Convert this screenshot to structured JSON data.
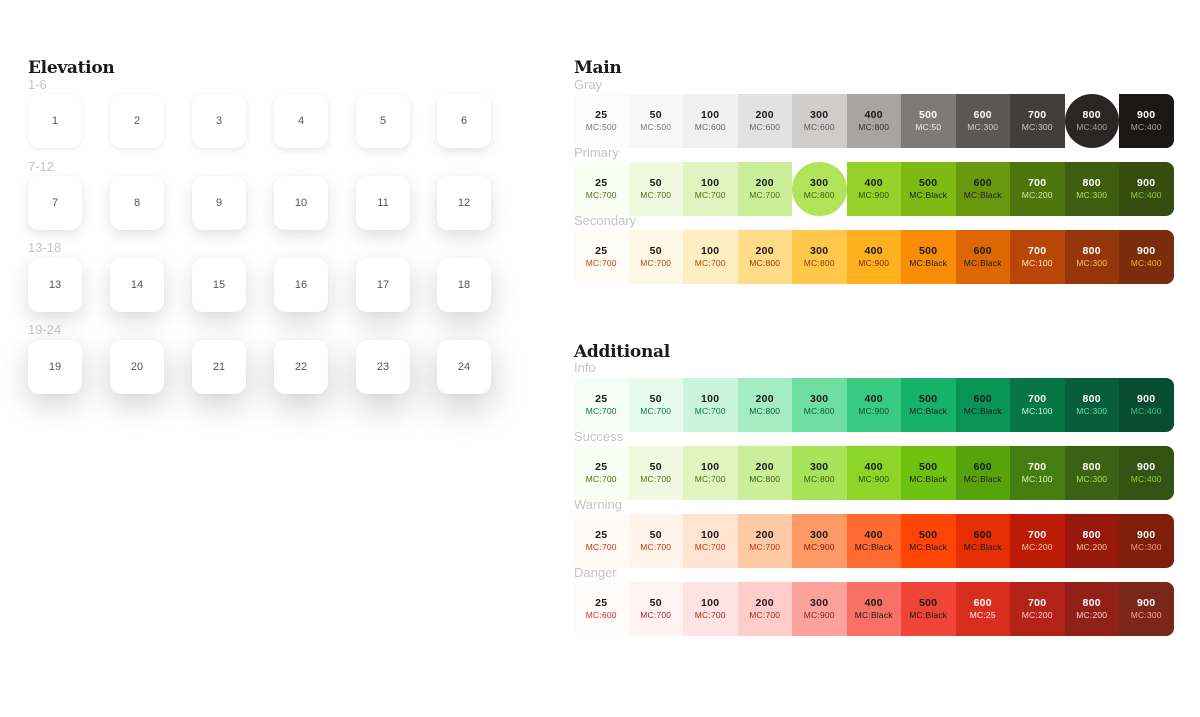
{
  "elevation": {
    "title": "Elevation",
    "groups": [
      {
        "label": "1-6",
        "cards": [
          "1",
          "2",
          "3",
          "4",
          "5",
          "6"
        ]
      },
      {
        "label": "7-12",
        "cards": [
          "7",
          "8",
          "9",
          "10",
          "11",
          "12"
        ]
      },
      {
        "label": "13-18",
        "cards": [
          "13",
          "14",
          "15",
          "16",
          "17",
          "18"
        ]
      },
      {
        "label": "19-24",
        "cards": [
          "19",
          "20",
          "21",
          "22",
          "23",
          "24"
        ]
      }
    ]
  },
  "main": {
    "title": "Main",
    "palettes": [
      {
        "name": "Gray",
        "swatches": [
          {
            "shade": "25",
            "mc": "MC:500",
            "bg": "#fcfcfc",
            "fg": "#1a1a1a",
            "mcColor": "#7a7a7a"
          },
          {
            "shade": "50",
            "mc": "MC:500",
            "bg": "#f7f7f7",
            "fg": "#1a1a1a",
            "mcColor": "#7a7a7a"
          },
          {
            "shade": "100",
            "mc": "MC:600",
            "bg": "#f0f0f0",
            "fg": "#1a1a1a",
            "mcColor": "#666666"
          },
          {
            "shade": "200",
            "mc": "MC:600",
            "bg": "#e3e2e2",
            "fg": "#1a1a1a",
            "mcColor": "#666666"
          },
          {
            "shade": "300",
            "mc": "MC:600",
            "bg": "#cfcdcc",
            "fg": "#1a1a1a",
            "mcColor": "#5a5a5a"
          },
          {
            "shade": "400",
            "mc": "MC:800",
            "bg": "#a8a4a2",
            "fg": "#1a1a1a",
            "mcColor": "#333333"
          },
          {
            "shade": "500",
            "mc": "MC:50",
            "bg": "#7f7a78",
            "fg": "#ffffff",
            "mcColor": "#f0f0f0"
          },
          {
            "shade": "600",
            "mc": "MC:300",
            "bg": "#5b5755",
            "fg": "#ffffff",
            "mcColor": "#d0cecd"
          },
          {
            "shade": "700",
            "mc": "MC:300",
            "bg": "#413e3c",
            "fg": "#ffffff",
            "mcColor": "#cfcdcc"
          },
          {
            "shade": "800",
            "mc": "MC:400",
            "bg": "#2a2625",
            "fg": "#ffffff",
            "mcColor": "#a8a4a2",
            "circle": true
          },
          {
            "shade": "900",
            "mc": "MC:400",
            "bg": "#1a1716",
            "fg": "#ffffff",
            "mcColor": "#a8a4a2"
          }
        ]
      },
      {
        "name": "Primary",
        "swatches": [
          {
            "shade": "25",
            "mc": "MC:700",
            "bg": "#f9fdf2",
            "fg": "#1a1a1a",
            "mcColor": "#4a6e14"
          },
          {
            "shade": "50",
            "mc": "MC:700",
            "bg": "#f1fae1",
            "fg": "#1a1a1a",
            "mcColor": "#4a6e14"
          },
          {
            "shade": "100",
            "mc": "MC:700",
            "bg": "#e1f4c0",
            "fg": "#1a1a1a",
            "mcColor": "#4a6e14"
          },
          {
            "shade": "200",
            "mc": "MC:700",
            "bg": "#cbee99",
            "fg": "#1a1a1a",
            "mcColor": "#4a6e14"
          },
          {
            "shade": "300",
            "mc": "MC:800",
            "bg": "#b1e35b",
            "fg": "#1a1a1a",
            "mcColor": "#3a5a10",
            "circle": true
          },
          {
            "shade": "400",
            "mc": "MC:900",
            "bg": "#96d12a",
            "fg": "#1a1a1a",
            "mcColor": "#2f4a0c"
          },
          {
            "shade": "500",
            "mc": "MC:Black",
            "bg": "#7fba14",
            "fg": "#1a1a1a",
            "mcColor": "#1a1a1a"
          },
          {
            "shade": "600",
            "mc": "MC:Black",
            "bg": "#67980e",
            "fg": "#1a1a1a",
            "mcColor": "#1a1a1a"
          },
          {
            "shade": "700",
            "mc": "MC:200",
            "bg": "#4f760d",
            "fg": "#ffffff",
            "mcColor": "#cbee99"
          },
          {
            "shade": "800",
            "mc": "MC:300",
            "bg": "#3f5d0f",
            "fg": "#ffffff",
            "mcColor": "#b1e35b"
          },
          {
            "shade": "900",
            "mc": "MC:400",
            "bg": "#354e10",
            "fg": "#ffffff",
            "mcColor": "#96d12a"
          }
        ]
      },
      {
        "name": "Secondary",
        "swatches": [
          {
            "shade": "25",
            "mc": "MC:700",
            "bg": "#fffcf5",
            "fg": "#1a1a1a",
            "mcColor": "#c2410c"
          },
          {
            "shade": "50",
            "mc": "MC:700",
            "bg": "#fff8e6",
            "fg": "#1a1a1a",
            "mcColor": "#c2410c"
          },
          {
            "shade": "100",
            "mc": "MC:700",
            "bg": "#ffeec2",
            "fg": "#1a1a1a",
            "mcColor": "#c2410c"
          },
          {
            "shade": "200",
            "mc": "MC:800",
            "bg": "#ffdd88",
            "fg": "#1a1a1a",
            "mcColor": "#9a3412"
          },
          {
            "shade": "300",
            "mc": "MC:800",
            "bg": "#ffc84a",
            "fg": "#1a1a1a",
            "mcColor": "#9a3412"
          },
          {
            "shade": "400",
            "mc": "MC:900",
            "bg": "#ffb01f",
            "fg": "#1a1a1a",
            "mcColor": "#7c2d12"
          },
          {
            "shade": "500",
            "mc": "MC:Black",
            "bg": "#f98d08",
            "fg": "#1a1a1a",
            "mcColor": "#1a1a1a"
          },
          {
            "shade": "600",
            "mc": "MC:Black",
            "bg": "#dd6703",
            "fg": "#1a1a1a",
            "mcColor": "#1a1a1a"
          },
          {
            "shade": "700",
            "mc": "MC:100",
            "bg": "#b74607",
            "fg": "#ffffff",
            "mcColor": "#ffeec2"
          },
          {
            "shade": "800",
            "mc": "MC:300",
            "bg": "#94350c",
            "fg": "#ffffff",
            "mcColor": "#ffc84a"
          },
          {
            "shade": "900",
            "mc": "MC:400",
            "bg": "#7a2d0d",
            "fg": "#ffffff",
            "mcColor": "#ffb01f"
          }
        ]
      }
    ]
  },
  "additional": {
    "title": "Additional",
    "palettes": [
      {
        "name": "Info",
        "swatches": [
          {
            "shade": "25",
            "mc": "MC:700",
            "bg": "#f5fdf8",
            "fg": "#1a1a1a",
            "mcColor": "#067647"
          },
          {
            "shade": "50",
            "mc": "MC:700",
            "bg": "#e6faee",
            "fg": "#1a1a1a",
            "mcColor": "#067647"
          },
          {
            "shade": "100",
            "mc": "MC:700",
            "bg": "#cbf4dc",
            "fg": "#1a1a1a",
            "mcColor": "#067647"
          },
          {
            "shade": "200",
            "mc": "MC:800",
            "bg": "#a4ecc2",
            "fg": "#1a1a1a",
            "mcColor": "#085d3a"
          },
          {
            "shade": "300",
            "mc": "MC:800",
            "bg": "#6fdea2",
            "fg": "#1a1a1a",
            "mcColor": "#085d3a"
          },
          {
            "shade": "400",
            "mc": "MC:900",
            "bg": "#3acb82",
            "fg": "#1a1a1a",
            "mcColor": "#074d31"
          },
          {
            "shade": "500",
            "mc": "MC:Black",
            "bg": "#17b26a",
            "fg": "#1a1a1a",
            "mcColor": "#1a1a1a"
          },
          {
            "shade": "600",
            "mc": "MC:Black",
            "bg": "#079455",
            "fg": "#1a1a1a",
            "mcColor": "#1a1a1a"
          },
          {
            "shade": "700",
            "mc": "MC:100",
            "bg": "#067647",
            "fg": "#ffffff",
            "mcColor": "#cbf4dc"
          },
          {
            "shade": "800",
            "mc": "MC:300",
            "bg": "#085d3a",
            "fg": "#ffffff",
            "mcColor": "#6fdea2"
          },
          {
            "shade": "900",
            "mc": "MC:400",
            "bg": "#074d31",
            "fg": "#ffffff",
            "mcColor": "#3acb82"
          }
        ]
      },
      {
        "name": "Success",
        "swatches": [
          {
            "shade": "25",
            "mc": "MC:700",
            "bg": "#f9fdf2",
            "fg": "#1a1a1a",
            "mcColor": "#4a6e14"
          },
          {
            "shade": "50",
            "mc": "MC:700",
            "bg": "#f1fae1",
            "fg": "#1a1a1a",
            "mcColor": "#4a6e14"
          },
          {
            "shade": "100",
            "mc": "MC:700",
            "bg": "#e1f4c0",
            "fg": "#1a1a1a",
            "mcColor": "#4a6e14"
          },
          {
            "shade": "200",
            "mc": "MC:800",
            "bg": "#cbee99",
            "fg": "#1a1a1a",
            "mcColor": "#3a5a10"
          },
          {
            "shade": "300",
            "mc": "MC:800",
            "bg": "#a8e45a",
            "fg": "#1a1a1a",
            "mcColor": "#3a5a10"
          },
          {
            "shade": "400",
            "mc": "MC:900",
            "bg": "#8ed52a",
            "fg": "#1a1a1a",
            "mcColor": "#2f4a0c"
          },
          {
            "shade": "500",
            "mc": "MC:Black",
            "bg": "#6fc212",
            "fg": "#1a1a1a",
            "mcColor": "#1a1a1a"
          },
          {
            "shade": "600",
            "mc": "MC:Black",
            "bg": "#57a30c",
            "fg": "#1a1a1a",
            "mcColor": "#1a1a1a"
          },
          {
            "shade": "700",
            "mc": "MC:100",
            "bg": "#447d10",
            "fg": "#ffffff",
            "mcColor": "#e1f4c0"
          },
          {
            "shade": "800",
            "mc": "MC:300",
            "bg": "#3a6212",
            "fg": "#ffffff",
            "mcColor": "#a8e45a"
          },
          {
            "shade": "900",
            "mc": "MC:400",
            "bg": "#335313",
            "fg": "#ffffff",
            "mcColor": "#8ed52a"
          }
        ]
      },
      {
        "name": "Warning",
        "swatches": [
          {
            "shade": "25",
            "mc": "MC:700",
            "bg": "#fffaf6",
            "fg": "#1a1a1a",
            "mcColor": "#c4320a"
          },
          {
            "shade": "50",
            "mc": "MC:700",
            "bg": "#fff3ea",
            "fg": "#1a1a1a",
            "mcColor": "#c4320a"
          },
          {
            "shade": "100",
            "mc": "MC:700",
            "bg": "#ffe4d2",
            "fg": "#1a1a1a",
            "mcColor": "#c4320a"
          },
          {
            "shade": "200",
            "mc": "MC:700",
            "bg": "#ffc9a6",
            "fg": "#1a1a1a",
            "mcColor": "#c4320a"
          },
          {
            "shade": "300",
            "mc": "MC:900",
            "bg": "#ff9a66",
            "fg": "#1a1a1a",
            "mcColor": "#7e1e0b"
          },
          {
            "shade": "400",
            "mc": "MC:Black",
            "bg": "#ff6a2e",
            "fg": "#1a1a1a",
            "mcColor": "#1a1a1a"
          },
          {
            "shade": "500",
            "mc": "MC:Black",
            "bg": "#ff4405",
            "fg": "#1a1a1a",
            "mcColor": "#1a1a1a"
          },
          {
            "shade": "600",
            "mc": "MC:Black",
            "bg": "#e62e05",
            "fg": "#1a1a1a",
            "mcColor": "#1a1a1a"
          },
          {
            "shade": "700",
            "mc": "MC:200",
            "bg": "#bc1b06",
            "fg": "#ffffff",
            "mcColor": "#ffc9a6"
          },
          {
            "shade": "800",
            "mc": "MC:200",
            "bg": "#97180c",
            "fg": "#ffffff",
            "mcColor": "#ffc9a6"
          },
          {
            "shade": "900",
            "mc": "MC:300",
            "bg": "#7e1e0b",
            "fg": "#ffffff",
            "mcColor": "#ff9a66"
          }
        ]
      },
      {
        "name": "Danger",
        "swatches": [
          {
            "shade": "25",
            "mc": "MC:600",
            "bg": "#fffbfa",
            "fg": "#1a1a1a",
            "mcColor": "#d92d20"
          },
          {
            "shade": "50",
            "mc": "MC:700",
            "bg": "#fef3f2",
            "fg": "#1a1a1a",
            "mcColor": "#b42318"
          },
          {
            "shade": "100",
            "mc": "MC:700",
            "bg": "#fee4e2",
            "fg": "#1a1a1a",
            "mcColor": "#b42318"
          },
          {
            "shade": "200",
            "mc": "MC:700",
            "bg": "#fecdca",
            "fg": "#1a1a1a",
            "mcColor": "#b42318"
          },
          {
            "shade": "300",
            "mc": "MC:900",
            "bg": "#fda29b",
            "fg": "#1a1a1a",
            "mcColor": "#7a271a"
          },
          {
            "shade": "400",
            "mc": "MC:Black",
            "bg": "#f97066",
            "fg": "#1a1a1a",
            "mcColor": "#1a1a1a"
          },
          {
            "shade": "500",
            "mc": "MC:Black",
            "bg": "#f04438",
            "fg": "#1a1a1a",
            "mcColor": "#1a1a1a"
          },
          {
            "shade": "600",
            "mc": "MC:25",
            "bg": "#d92d20",
            "fg": "#ffffff",
            "mcColor": "#fffbfa"
          },
          {
            "shade": "700",
            "mc": "MC:200",
            "bg": "#b42318",
            "fg": "#ffffff",
            "mcColor": "#fecdca"
          },
          {
            "shade": "800",
            "mc": "MC:200",
            "bg": "#912018",
            "fg": "#ffffff",
            "mcColor": "#fecdca"
          },
          {
            "shade": "900",
            "mc": "MC:300",
            "bg": "#7a271a",
            "fg": "#ffffff",
            "mcColor": "#fda29b"
          }
        ]
      }
    ]
  }
}
